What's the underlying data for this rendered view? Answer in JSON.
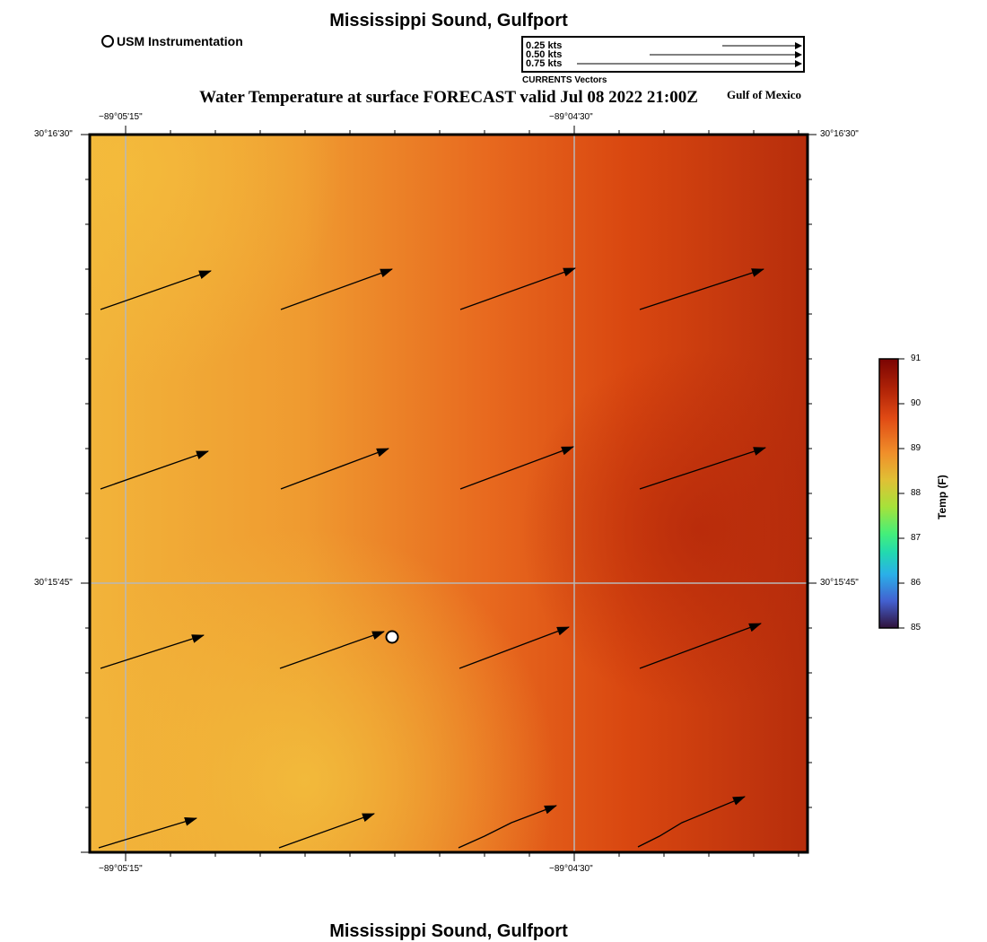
{
  "header": {
    "title": "Mississippi Sound, Gulfport",
    "usm_label": "USM Instrumentation"
  },
  "vector_legend": {
    "rows": [
      "0.25 kts",
      "0.50 kts",
      "0.75 kts"
    ],
    "caption": "CURRENTS Vectors"
  },
  "map": {
    "subtitle": "Water Temperature at surface FORECAST valid Jul 08 2022 21:00Z",
    "region_label": "Gulf of Mexico",
    "lon_labels": [
      "−89°05'15\"",
      "−89°04'30\""
    ],
    "lat_labels": [
      "30°16'30\"",
      "30°15'45\""
    ],
    "gridlines": true
  },
  "colorbar": {
    "label": "Temp (F)",
    "ticks": [
      "91",
      "90",
      "89",
      "88",
      "87",
      "86",
      "85"
    ],
    "min": 85,
    "max": 91,
    "colors": [
      "#7a0403",
      "#c23c0a",
      "#ee6f1f",
      "#e8b030",
      "#a8e03a",
      "#2ee8a0",
      "#23b8e6",
      "#3f5dd6",
      "#30123b"
    ]
  },
  "footer": {
    "title": "Mississippi Sound, Gulfport"
  }
}
